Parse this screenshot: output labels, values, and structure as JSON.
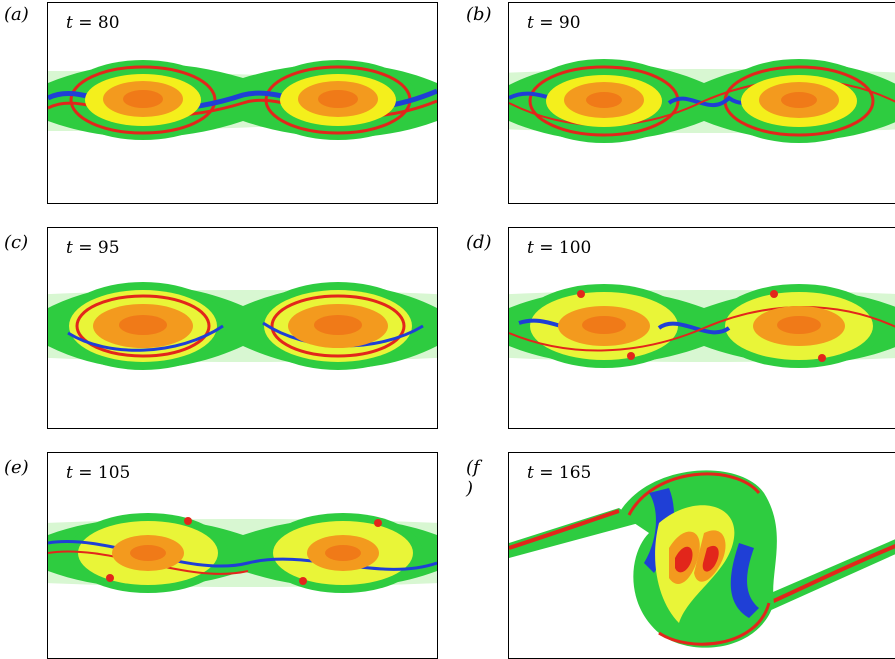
{
  "panels": [
    {
      "label": "(a)",
      "t_var": "t",
      "t_value": "= 80"
    },
    {
      "label": "(b)",
      "t_var": "t",
      "t_value": "= 90"
    },
    {
      "label": "(c)",
      "t_var": "t",
      "t_value": "= 95"
    },
    {
      "label": "(d)",
      "t_var": "t",
      "t_value": "= 100"
    },
    {
      "label": "(e)",
      "t_var": "t",
      "t_value": "= 105"
    },
    {
      "label": "(f )",
      "t_var": "t",
      "t_value": "= 165"
    }
  ],
  "colors": {
    "green": "#2ecc40",
    "yellow": "#f4ef1c",
    "orange": "#f39a1e",
    "red": "#e2261b",
    "blue": "#1f3fd6",
    "pale": "#c9f3c0"
  }
}
